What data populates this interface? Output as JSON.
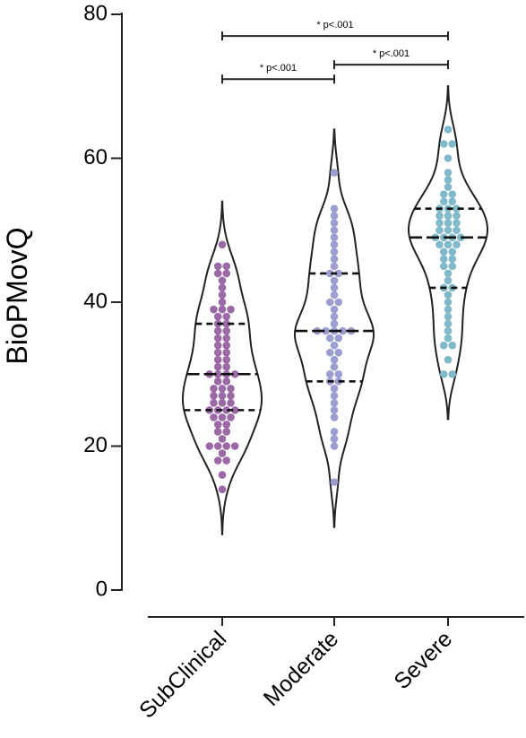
{
  "chart_data": {
    "type": "violin",
    "y_label": "BioPMovQ",
    "categories": [
      "SubClinical",
      "Moderate",
      "Severe"
    ],
    "ylim": [
      0,
      80
    ],
    "yticks": [
      0,
      20,
      40,
      60,
      80
    ],
    "series": [
      {
        "name": "SubClinical",
        "color": "#9b6aa6",
        "median": 30,
        "q1": 25,
        "q3": 37,
        "values": [
          14,
          16,
          18,
          18,
          19,
          20,
          20,
          20,
          20,
          21,
          22,
          22,
          23,
          23,
          24,
          24,
          24,
          25,
          25,
          25,
          25,
          26,
          26,
          26,
          27,
          27,
          27,
          28,
          28,
          28,
          29,
          29,
          30,
          30,
          30,
          30,
          31,
          31,
          32,
          32,
          33,
          33,
          34,
          34,
          35,
          35,
          36,
          36,
          37,
          37,
          38,
          38,
          39,
          39,
          39,
          40,
          41,
          42,
          43,
          44,
          44,
          45,
          45,
          48
        ]
      },
      {
        "name": "Moderate",
        "color": "#9c9ecf",
        "median": 36,
        "q1": 29,
        "q3": 44,
        "values": [
          15,
          20,
          21,
          22,
          24,
          25,
          26,
          27,
          28,
          29,
          29,
          30,
          30,
          31,
          32,
          33,
          33,
          34,
          35,
          35,
          36,
          36,
          36,
          36,
          36,
          37,
          38,
          39,
          40,
          40,
          41,
          42,
          43,
          44,
          44,
          45,
          46,
          47,
          48,
          49,
          50,
          51,
          52,
          53,
          58
        ]
      },
      {
        "name": "Severe",
        "color": "#80b9c9",
        "median": 49,
        "q1": 42,
        "q3": 53,
        "values": [
          30,
          30,
          32,
          34,
          34,
          35,
          36,
          37,
          38,
          39,
          40,
          41,
          42,
          42,
          43,
          44,
          45,
          45,
          46,
          46,
          47,
          47,
          48,
          48,
          48,
          49,
          49,
          49,
          49,
          50,
          50,
          50,
          51,
          51,
          51,
          52,
          52,
          52,
          53,
          53,
          53,
          54,
          54,
          55,
          55,
          56,
          57,
          58,
          60,
          62,
          62,
          64
        ]
      }
    ],
    "annotations": [
      {
        "text": "* p<.001",
        "from": 0,
        "to": 1,
        "y": 71
      },
      {
        "text": "* p<.001",
        "from": 1,
        "to": 2,
        "y": 73
      },
      {
        "text": "* p<.001",
        "from": 0,
        "to": 2,
        "y": 77
      }
    ]
  }
}
